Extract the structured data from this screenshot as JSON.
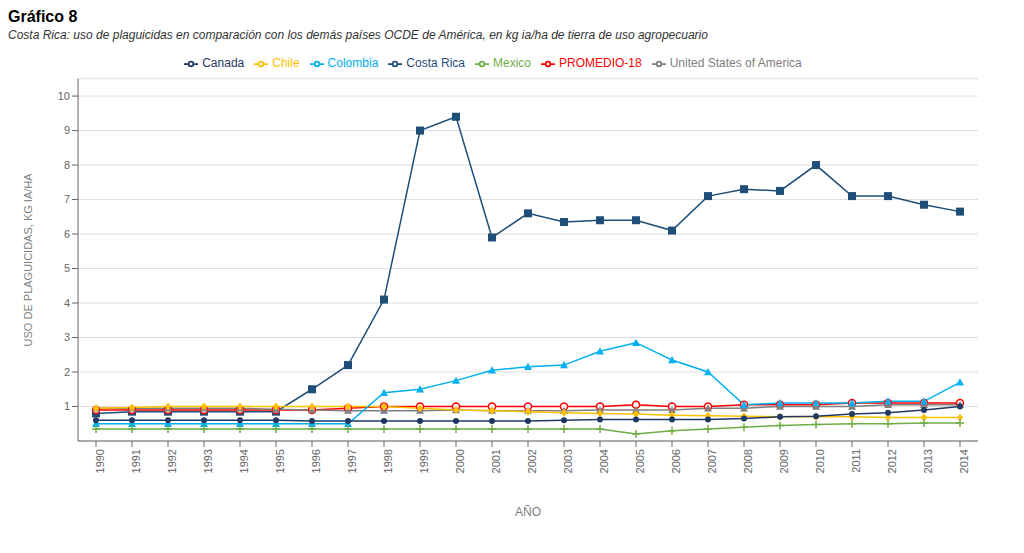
{
  "chart_data": {
    "type": "line",
    "title": "Gráfico 8",
    "subtitle": "Costa Rica: uso de plaguicidas en comparación con los demás países OCDE de América, en kg ia/ha de tierra de uso agropecuario",
    "xlabel": "AÑO",
    "ylabel": "USO DE PLAGUICIDAS, KG IA/HA",
    "x": [
      1990,
      1991,
      1992,
      1993,
      1994,
      1995,
      1996,
      1997,
      1998,
      1999,
      2000,
      2001,
      2002,
      2003,
      2004,
      2005,
      2006,
      2007,
      2008,
      2009,
      2010,
      2011,
      2012,
      2013,
      2014
    ],
    "xlim": [
      1989.5,
      2014.5
    ],
    "xticks": [
      1990,
      1991,
      1992,
      1993,
      1994,
      1995,
      1996,
      1997,
      1998,
      1999,
      2000,
      2001,
      2002,
      2003,
      2004,
      2005,
      2006,
      2007,
      2008,
      2009,
      2010,
      2011,
      2012,
      2013,
      2014
    ],
    "ylim": [
      0,
      10.5
    ],
    "yticks": [
      1,
      2,
      3,
      4,
      5,
      6,
      7,
      8,
      9,
      10
    ],
    "grid": true,
    "legend": "top",
    "series": [
      {
        "name": "Costa Rica",
        "color": "#1f4e79",
        "marker": "square",
        "values": [
          0.8,
          0.85,
          0.85,
          0.85,
          0.85,
          0.85,
          1.5,
          2.2,
          4.1,
          9.0,
          9.4,
          5.9,
          6.6,
          6.35,
          6.4,
          6.4,
          6.1,
          7.1,
          7.3,
          7.25,
          8.0,
          7.1,
          7.1,
          6.85,
          6.65
        ]
      },
      {
        "name": "PROMEDIO-18",
        "color": "#ff0000",
        "marker": "circle_open",
        "values": [
          0.9,
          0.9,
          0.9,
          0.9,
          0.9,
          0.9,
          0.9,
          0.95,
          1.0,
          1.0,
          1.0,
          1.0,
          1.0,
          1.0,
          1.0,
          1.05,
          1.0,
          1.0,
          1.05,
          1.05,
          1.05,
          1.1,
          1.1,
          1.1,
          1.1
        ]
      },
      {
        "name": "United States of America",
        "color": "#808080",
        "marker": "triangle",
        "values": [
          0.95,
          0.95,
          0.95,
          0.95,
          0.95,
          0.92,
          0.9,
          0.88,
          0.88,
          0.88,
          0.9,
          0.88,
          0.88,
          0.88,
          0.9,
          0.9,
          0.9,
          0.95,
          0.95,
          1.0,
          1.0,
          1.0,
          1.05,
          1.05,
          1.05
        ]
      },
      {
        "name": "Chile",
        "color": "#ffc000",
        "marker": "diamond",
        "values": [
          0.95,
          0.97,
          1.0,
          1.0,
          1.0,
          1.0,
          1.0,
          1.0,
          1.0,
          0.95,
          0.9,
          0.88,
          0.85,
          0.82,
          0.8,
          0.78,
          0.75,
          0.73,
          0.72,
          0.7,
          0.7,
          0.7,
          0.68,
          0.68,
          0.68
        ]
      },
      {
        "name": "Colombia",
        "color": "#00b0f0",
        "marker": "triangle",
        "values": [
          0.5,
          0.5,
          0.5,
          0.5,
          0.5,
          0.5,
          0.5,
          0.5,
          1.4,
          1.5,
          1.75,
          2.05,
          2.15,
          2.2,
          2.6,
          2.85,
          2.35,
          2.0,
          1.05,
          1.1,
          1.1,
          1.1,
          1.15,
          1.15,
          1.7
        ]
      },
      {
        "name": "Mexico",
        "color": "#70ad47",
        "marker": "plus",
        "values": [
          0.35,
          0.35,
          0.35,
          0.35,
          0.35,
          0.35,
          0.35,
          0.35,
          0.35,
          0.35,
          0.35,
          0.35,
          0.35,
          0.35,
          0.35,
          0.2,
          0.3,
          0.35,
          0.4,
          0.45,
          0.48,
          0.5,
          0.5,
          0.52,
          0.52
        ]
      },
      {
        "name": "Canada",
        "color": "#1f3864",
        "marker": "circle",
        "values": [
          0.6,
          0.6,
          0.6,
          0.6,
          0.6,
          0.6,
          0.58,
          0.58,
          0.58,
          0.58,
          0.58,
          0.58,
          0.58,
          0.6,
          0.62,
          0.62,
          0.62,
          0.62,
          0.65,
          0.7,
          0.72,
          0.78,
          0.82,
          0.9,
          1.0
        ]
      }
    ]
  }
}
